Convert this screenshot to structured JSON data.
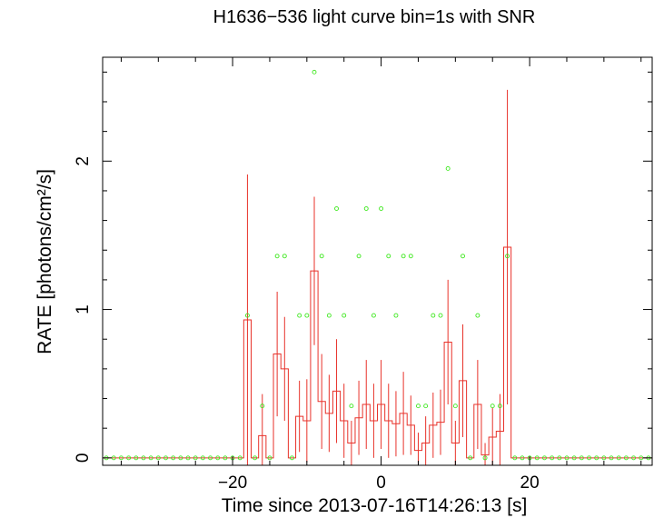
{
  "chart_data": {
    "type": "line",
    "title": "H1636−536 light curve bin=1s with SNR",
    "xlabel": "Time since 2013-07-16T14:26:13 [s]",
    "ylabel": "RATE [photons/cm²/s]",
    "xlim": [
      -37.5,
      36.5
    ],
    "ylim": [
      -0.05,
      2.7
    ],
    "x_ticks": [
      -20,
      0,
      20
    ],
    "x_tick_labels": [
      "−20",
      "0",
      "20"
    ],
    "y_ticks": [
      0,
      1,
      2
    ],
    "y_tick_labels": [
      "0",
      "1",
      "2"
    ],
    "grid": false,
    "legend": "none",
    "colors": {
      "rate": "#e8322a",
      "snr": "#3ee81e",
      "axes": "#000000"
    },
    "series": [
      {
        "kind": "step-with-error-bars",
        "bin_width": 1,
        "x": [
          -19,
          -18,
          -17,
          -16,
          -15,
          -14,
          -13,
          -12,
          -11,
          -10,
          -9,
          -8,
          -7,
          -6,
          -5,
          -4,
          -3,
          -2,
          -1,
          0,
          1,
          2,
          3,
          4,
          5,
          6,
          7,
          8,
          9,
          10,
          11,
          12,
          13,
          14,
          15,
          16,
          17
        ],
        "y": [
          0,
          0.93,
          0,
          0.15,
          0,
          0.7,
          0.6,
          0,
          0.28,
          0.25,
          1.26,
          0.38,
          0.3,
          0.45,
          0.25,
          0.1,
          0.27,
          0.36,
          0.25,
          0.36,
          0.25,
          0.23,
          0.3,
          0.22,
          0.05,
          0.1,
          0.22,
          0.24,
          0.78,
          0.1,
          0.52,
          0,
          0.36,
          0.02,
          0.14,
          0.18,
          1.42
        ],
        "yerr": [
          0,
          0.98,
          0,
          0.28,
          0,
          0.42,
          0.35,
          0,
          0.24,
          0.28,
          0.5,
          0.32,
          0.26,
          0.35,
          0.25,
          0.15,
          0.25,
          0.3,
          0.25,
          0.3,
          0.25,
          0.22,
          0.28,
          0.2,
          0.12,
          0.18,
          0.22,
          0.22,
          0.42,
          0.15,
          0.38,
          0,
          0.3,
          0.08,
          0.2,
          0.25,
          1.06
        ]
      },
      {
        "kind": "scatter",
        "x": [
          -37,
          -36,
          -35,
          -34,
          -33,
          -32,
          -31,
          -30,
          -29,
          -28,
          -27,
          -26,
          -25,
          -24,
          -23,
          -22,
          -21,
          -20,
          -19,
          -18,
          -17,
          -16,
          -15,
          -14,
          -13,
          -12,
          -11,
          -10,
          -9,
          -8,
          -7,
          -6,
          -5,
          -4,
          -3,
          -2,
          -1,
          0,
          1,
          2,
          3,
          4,
          5,
          6,
          7,
          8,
          9,
          10,
          11,
          12,
          13,
          14,
          15,
          16,
          17,
          18,
          19,
          20,
          21,
          22,
          23,
          24,
          25,
          26,
          27,
          28,
          29,
          30,
          31,
          32,
          33,
          34,
          35,
          36
        ],
        "y": [
          0,
          0,
          0,
          0,
          0,
          0,
          0,
          0,
          0,
          0,
          0,
          0,
          0,
          0,
          0,
          0,
          0,
          0,
          0,
          0.96,
          0,
          0.35,
          0,
          1.36,
          1.36,
          0,
          0.96,
          0.96,
          2.6,
          1.36,
          0.96,
          1.68,
          0.96,
          0.35,
          1.36,
          1.68,
          0.96,
          1.68,
          1.36,
          0.96,
          1.36,
          1.36,
          0.35,
          0.35,
          0.96,
          0.96,
          1.95,
          0.35,
          1.36,
          0,
          0.96,
          0,
          0.35,
          0.35,
          1.36,
          0,
          0,
          0,
          0,
          0,
          0,
          0,
          0,
          0,
          0,
          0,
          0,
          0,
          0,
          0,
          0,
          0,
          0,
          0
        ]
      }
    ]
  }
}
